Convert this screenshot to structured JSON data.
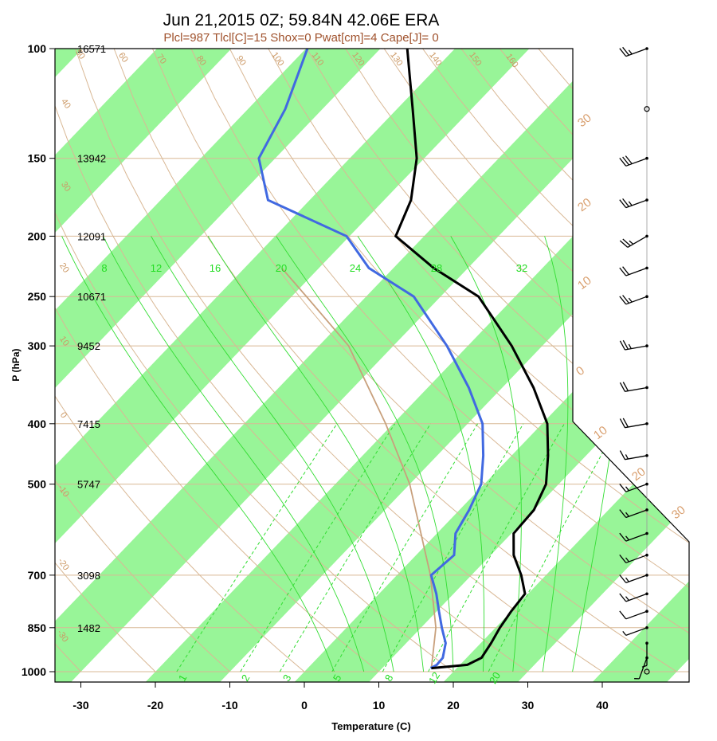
{
  "chart_data": {
    "type": "skew-t",
    "title": "Jun 21,2015 0Z; 59.84N 42.06E ERA",
    "subtitle": "Plcl=987 Tlcl[C]=15 Shox=0 Pwat[cm]=4 Cape[J]= 0",
    "xlabel": "Temperature (C)",
    "ylabel": "P (hPa)",
    "xlim": [
      -33,
      36
    ],
    "ylim": [
      1000,
      100
    ],
    "x_ticks": [
      "-30",
      "-20",
      "-10",
      "0",
      "10",
      "20",
      "30",
      "40"
    ],
    "pressure_levels": [
      {
        "p": 100,
        "label": "100",
        "height": "16571"
      },
      {
        "p": 150,
        "label": "150",
        "height": "13942"
      },
      {
        "p": 200,
        "label": "200",
        "height": "12091"
      },
      {
        "p": 250,
        "label": "250",
        "height": "10671"
      },
      {
        "p": 300,
        "label": "300",
        "height": "9452"
      },
      {
        "p": 400,
        "label": "400",
        "height": "7415"
      },
      {
        "p": 500,
        "label": "500",
        "height": "5747"
      },
      {
        "p": 700,
        "label": "700",
        "height": "3098"
      },
      {
        "p": 850,
        "label": "850",
        "height": "1482"
      },
      {
        "p": 1000,
        "label": "1000",
        "height": ""
      }
    ],
    "isotherm_labels": [
      "-30",
      "-20",
      "-10",
      "0",
      "10",
      "20",
      "30"
    ],
    "dry_adiabat_labels": [
      "-30",
      "-20",
      "-10",
      "0",
      "10",
      "20",
      "30",
      "40",
      "50",
      "60",
      "70",
      "80",
      "90",
      "100",
      "110",
      "120",
      "130",
      "140",
      "150",
      "160"
    ],
    "moist_adiabat_labels": [
      "8",
      "12",
      "16",
      "20",
      "24",
      "28",
      "32"
    ],
    "mixing_ratio_labels": [
      "1",
      "2",
      "3",
      "5",
      "8",
      "12",
      "20"
    ],
    "temperature": [
      {
        "p": 987,
        "t": 16.6
      },
      {
        "p": 975,
        "t": 21.0
      },
      {
        "p": 950,
        "t": 22.0
      },
      {
        "p": 900,
        "t": 21.4
      },
      {
        "p": 850,
        "t": 20.6
      },
      {
        "p": 800,
        "t": 20.0
      },
      {
        "p": 750,
        "t": 19.6
      },
      {
        "p": 700,
        "t": 16.7
      },
      {
        "p": 650,
        "t": 13.1
      },
      {
        "p": 600,
        "t": 10.3
      },
      {
        "p": 550,
        "t": 10.0
      },
      {
        "p": 500,
        "t": 8.3
      },
      {
        "p": 450,
        "t": 4.9
      },
      {
        "p": 400,
        "t": 0.7
      },
      {
        "p": 350,
        "t": -5.8
      },
      {
        "p": 300,
        "t": -14.1
      },
      {
        "p": 250,
        "t": -24.9
      },
      {
        "p": 225,
        "t": -34.6
      },
      {
        "p": 200,
        "t": -43.8
      },
      {
        "p": 175,
        "t": -46.4
      },
      {
        "p": 150,
        "t": -51.0
      },
      {
        "p": 125,
        "t": -57.9
      },
      {
        "p": 100,
        "t": -66.4
      }
    ],
    "dewpoint": [
      {
        "p": 987,
        "t": 16.5
      },
      {
        "p": 975,
        "t": 16.9
      },
      {
        "p": 950,
        "t": 16.8
      },
      {
        "p": 900,
        "t": 15.3
      },
      {
        "p": 850,
        "t": 12.8
      },
      {
        "p": 800,
        "t": 10.3
      },
      {
        "p": 750,
        "t": 7.7
      },
      {
        "p": 700,
        "t": 4.6
      },
      {
        "p": 650,
        "t": 5.1
      },
      {
        "p": 600,
        "t": 2.5
      },
      {
        "p": 550,
        "t": 1.3
      },
      {
        "p": 500,
        "t": -0.4
      },
      {
        "p": 450,
        "t": -3.8
      },
      {
        "p": 400,
        "t": -8.0
      },
      {
        "p": 350,
        "t": -14.5
      },
      {
        "p": 300,
        "t": -22.8
      },
      {
        "p": 250,
        "t": -33.6
      },
      {
        "p": 225,
        "t": -43.3
      },
      {
        "p": 200,
        "t": -50.4
      },
      {
        "p": 175,
        "t": -65.6
      },
      {
        "p": 150,
        "t": -72.2
      },
      {
        "p": 125,
        "t": -75.0
      },
      {
        "p": 100,
        "t": -79.8
      }
    ],
    "parcel": [
      {
        "p": 987,
        "t": 16.6
      },
      {
        "p": 850,
        "t": 12.0
      },
      {
        "p": 700,
        "t": 4.5
      },
      {
        "p": 500,
        "t": -10.0
      },
      {
        "p": 400,
        "t": -21.0
      },
      {
        "p": 300,
        "t": -36.0
      },
      {
        "p": 250,
        "t": -48.0
      },
      {
        "p": 225,
        "t": -55.0
      }
    ],
    "wind_barbs": [
      {
        "p": 100,
        "dir": 250,
        "spd": 25
      },
      {
        "p": 125,
        "dir": 240,
        "spd": 0
      },
      {
        "p": 150,
        "dir": 250,
        "spd": 30
      },
      {
        "p": 175,
        "dir": 250,
        "spd": 25
      },
      {
        "p": 200,
        "dir": 240,
        "spd": 25
      },
      {
        "p": 225,
        "dir": 250,
        "spd": 20
      },
      {
        "p": 250,
        "dir": 250,
        "spd": 25
      },
      {
        "p": 300,
        "dir": 260,
        "spd": 25
      },
      {
        "p": 350,
        "dir": 260,
        "spd": 20
      },
      {
        "p": 400,
        "dir": 260,
        "spd": 20
      },
      {
        "p": 450,
        "dir": 260,
        "spd": 15
      },
      {
        "p": 500,
        "dir": 250,
        "spd": 15
      },
      {
        "p": 550,
        "dir": 250,
        "spd": 15
      },
      {
        "p": 600,
        "dir": 250,
        "spd": 15
      },
      {
        "p": 650,
        "dir": 250,
        "spd": 15
      },
      {
        "p": 700,
        "dir": 250,
        "spd": 15
      },
      {
        "p": 750,
        "dir": 250,
        "spd": 15
      },
      {
        "p": 800,
        "dir": 250,
        "spd": 10
      },
      {
        "p": 850,
        "dir": 250,
        "spd": 5
      },
      {
        "p": 900,
        "dir": 180,
        "spd": 5
      },
      {
        "p": 950,
        "dir": 200,
        "spd": 5
      },
      {
        "p": 1000,
        "dir": 0,
        "spd": 0
      }
    ]
  }
}
